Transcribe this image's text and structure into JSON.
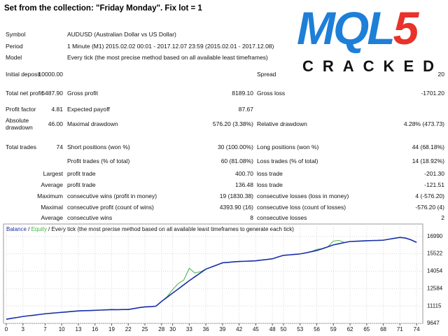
{
  "header": {
    "title": "Set from the collection: \"Friday Monday\".   Fix lot = 1"
  },
  "logo": {
    "main": "MQL",
    "accent": "5",
    "subtitle": "CRACKED"
  },
  "report": {
    "rows": [
      {
        "label": "Symbol",
        "label2": "AUDUSD (Australian Dollar vs US Dollar)"
      },
      {
        "label": "Period",
        "label2": "1 Minute (M1) 2015.02.02 00:01 - 2017.12.07 23:59 (2015.02.01 - 2017.12.08)"
      },
      {
        "label": "Model",
        "label2": "Every tick (the most precise method based on all available least timeframes)"
      },
      {
        "label": "Initial deposit",
        "value": "10000.00",
        "label3": "Spread",
        "value3": "20"
      },
      {
        "label": "Total net profit",
        "value": "6487.90",
        "label2": "Gross profit",
        "value2": "8189.10",
        "label3": "Gross loss",
        "value3": "-1701.20"
      },
      {
        "label": "Profit factor",
        "value": "4.81",
        "label2": "Expected payoff",
        "value2": "87.67"
      },
      {
        "label": "Absolute drawdown",
        "value": "46.00",
        "label2": "Maximal drawdown",
        "value2": "576.20 (3.38%)",
        "label3": "Relative drawdown",
        "value3": "4.28% (473.73)"
      },
      {
        "label": "Total trades",
        "value": "74",
        "label2": "Short positions (won %)",
        "value2": "30 (100.00%)",
        "label3": "Long positions (won %)",
        "value3": "44 (68.18%)"
      },
      {
        "label2": "Profit trades (% of total)",
        "value2": "60 (81.08%)",
        "label3": "Loss trades (% of total)",
        "value3": "14 (18.92%)"
      },
      {
        "prefix": "Largest",
        "label2": "profit trade",
        "value2": "400.70",
        "label3": "loss trade",
        "value3": "-201.30"
      },
      {
        "prefix": "Average",
        "label2": "profit trade",
        "value2": "136.48",
        "label3": "loss trade",
        "value3": "-121.51"
      },
      {
        "prefix": "Maximum",
        "label2": "consecutive wins (profit in money)",
        "value2": "19 (1830.38)",
        "label3": "consecutive losses (loss in money)",
        "value3": "4 (-576.20)"
      },
      {
        "prefix": "Maximal",
        "label2": "consecutive profit (count of wins)",
        "value2": "4393.90 (16)",
        "label3": "consecutive loss (count of losses)",
        "value3": "-576.20 (4)"
      },
      {
        "prefix": "Average",
        "label2": "consecutive wins",
        "value2": "8",
        "label3": "consecutive losses",
        "value3": "2"
      }
    ]
  },
  "chart_data": {
    "type": "line",
    "legend_separator": " / ",
    "legend_note": "Every tick (the most precise method based on all available least timeframes to generate each tick)",
    "x": [
      0,
      1,
      2,
      3,
      4,
      5,
      6,
      7,
      8,
      9,
      10,
      11,
      12,
      13,
      14,
      15,
      16,
      17,
      18,
      19,
      20,
      21,
      22,
      23,
      24,
      25,
      26,
      27,
      28,
      29,
      30,
      31,
      32,
      33,
      34,
      35,
      36,
      37,
      38,
      39,
      40,
      41,
      42,
      43,
      44,
      45,
      46,
      47,
      48,
      49,
      50,
      51,
      52,
      53,
      54,
      55,
      56,
      57,
      58,
      59,
      60,
      61,
      62,
      63,
      64,
      65,
      66,
      67,
      68,
      69,
      70,
      71,
      72,
      73,
      74
    ],
    "series": [
      {
        "name": "Balance",
        "color": "#1a2ea8",
        "values": [
          10000,
          10080,
          10150,
          10230,
          10290,
          10340,
          10400,
          10460,
          10500,
          10540,
          10580,
          10620,
          10660,
          10700,
          10720,
          10730,
          10750,
          10770,
          10790,
          10810,
          10800,
          10815,
          10820,
          10900,
          10980,
          11040,
          11060,
          11100,
          11500,
          11850,
          12200,
          12550,
          12900,
          13250,
          13580,
          13900,
          14230,
          14400,
          14580,
          14760,
          14800,
          14840,
          14870,
          14890,
          14910,
          14930,
          14990,
          15040,
          15100,
          15250,
          15390,
          15430,
          15470,
          15510,
          15600,
          15700,
          15800,
          15950,
          16110,
          16270,
          16370,
          16470,
          16560,
          16580,
          16600,
          16620,
          16640,
          16650,
          16670,
          16750,
          16830,
          16900,
          16850,
          16700,
          16488
        ]
      },
      {
        "name": "Equity",
        "color": "#3cb43c",
        "values": [
          10000,
          10080,
          10150,
          10230,
          10290,
          10340,
          10400,
          10460,
          10500,
          10540,
          10580,
          10620,
          10660,
          10700,
          10720,
          10730,
          10750,
          10770,
          10790,
          10810,
          10800,
          10815,
          10820,
          10900,
          10980,
          11040,
          11060,
          11100,
          11500,
          11900,
          12500,
          13000,
          13300,
          14300,
          13900,
          14000,
          14230,
          14400,
          14580,
          14760,
          14800,
          14840,
          14870,
          14890,
          14910,
          14930,
          14990,
          15040,
          15100,
          15250,
          15390,
          15430,
          15470,
          15510,
          15600,
          15700,
          15900,
          15950,
          16110,
          16600,
          16650,
          16470,
          16560,
          16580,
          16600,
          16620,
          16640,
          16650,
          16670,
          16750,
          16830,
          16900,
          16850,
          16700,
          16488
        ]
      }
    ],
    "xlim": [
      0,
      75
    ],
    "xticks": [
      0,
      3,
      7,
      10,
      13,
      16,
      19,
      22,
      25,
      28,
      30,
      33,
      36,
      39,
      42,
      45,
      48,
      50,
      53,
      56,
      59,
      62,
      65,
      68,
      71,
      74
    ],
    "ylim": [
      9647,
      17800
    ],
    "yticks": [
      9647,
      11115,
      12584,
      14054,
      15522,
      16990
    ],
    "grid": true
  }
}
